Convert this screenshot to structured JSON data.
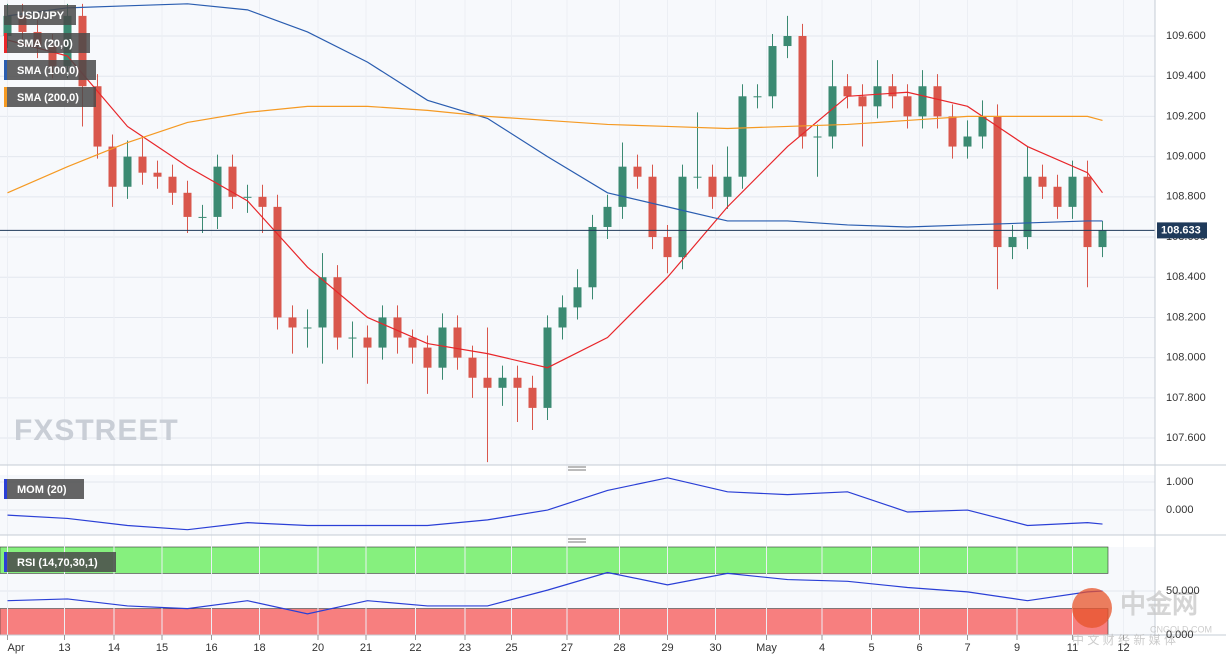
{
  "chart_data": [
    {
      "type": "candlestick",
      "xlim": [
        -0.5,
        76.5
      ],
      "ylim": [
        107.466,
        109.779
      ],
      "grid": true,
      "yticks": [
        {
          "value": 107.6,
          "label": "107.600"
        },
        {
          "value": 107.8,
          "label": "107.800"
        },
        {
          "value": 108.0,
          "label": "108.000"
        },
        {
          "value": 108.2,
          "label": "108.200"
        },
        {
          "value": 108.4,
          "label": "108.400"
        },
        {
          "value": 108.6,
          "label": "108.600"
        },
        {
          "value": 108.8,
          "label": "108.800"
        },
        {
          "value": 109.0,
          "label": "109.000"
        },
        {
          "value": 109.2,
          "label": "109.200"
        },
        {
          "value": 109.4,
          "label": "109.400"
        },
        {
          "value": 109.6,
          "label": "109.600"
        }
      ],
      "current_price": 108.633,
      "watermark": "FXSTREET",
      "series": [
        {
          "name": "USD/JPY",
          "up_color": "#3b8a72",
          "down_color": "#d9574c",
          "open": [
            109.6,
            109.7,
            109.62,
            109.55,
            109.45,
            109.7,
            109.35,
            109.05,
            108.85,
            109.0,
            108.92,
            108.9,
            108.82,
            108.7,
            108.7,
            108.95,
            108.8,
            108.8,
            108.75,
            108.2,
            108.15,
            108.15,
            108.4,
            108.1,
            108.1,
            108.05,
            108.2,
            108.1,
            108.05,
            107.95,
            108.15,
            108.0,
            107.9,
            107.85,
            107.9,
            107.85,
            107.75,
            108.15,
            108.25,
            108.35,
            108.65,
            108.75,
            108.95,
            108.9,
            108.6,
            108.5,
            108.9,
            108.9,
            108.8,
            108.9,
            109.3,
            109.3,
            109.55,
            109.6,
            109.1,
            109.1,
            109.35,
            109.3,
            109.25,
            109.35,
            109.3,
            109.2,
            109.35,
            109.2,
            109.05,
            109.1,
            109.2,
            108.55,
            108.6,
            108.9,
            108.85,
            108.75,
            108.9,
            108.55
          ],
          "high": [
            109.76,
            109.76,
            109.68,
            109.61,
            109.76,
            109.76,
            109.41,
            109.11,
            109.08,
            109.1,
            108.98,
            108.96,
            108.88,
            108.76,
            109.01,
            109.01,
            108.86,
            108.86,
            108.81,
            108.26,
            108.24,
            108.52,
            108.46,
            108.18,
            108.16,
            108.26,
            108.26,
            108.14,
            108.11,
            108.22,
            108.21,
            108.06,
            108.15,
            107.96,
            107.96,
            107.91,
            108.21,
            108.31,
            108.44,
            108.71,
            108.81,
            109.07,
            109.01,
            108.96,
            108.66,
            108.96,
            109.22,
            108.96,
            109.05,
            109.36,
            109.36,
            109.61,
            109.7,
            109.66,
            109.16,
            109.48,
            109.41,
            109.36,
            109.48,
            109.41,
            109.36,
            109.43,
            109.41,
            109.26,
            109.18,
            109.28,
            109.26,
            108.66,
            109.05,
            108.96,
            108.91,
            108.98,
            108.98,
            108.68
          ],
          "low": [
            109.54,
            109.56,
            109.49,
            109.39,
            109.39,
            109.15,
            108.99,
            108.75,
            108.79,
            108.86,
            108.84,
            108.76,
            108.62,
            108.62,
            108.64,
            108.74,
            108.72,
            108.62,
            108.14,
            108.02,
            108.05,
            107.97,
            108.04,
            108.0,
            107.87,
            107.99,
            108.02,
            107.97,
            107.82,
            107.89,
            107.94,
            107.8,
            107.48,
            107.76,
            107.68,
            107.64,
            107.69,
            108.09,
            108.19,
            108.29,
            108.59,
            108.69,
            108.84,
            108.54,
            108.42,
            108.44,
            108.84,
            108.74,
            108.74,
            108.84,
            109.24,
            109.24,
            109.49,
            109.04,
            108.9,
            109.04,
            109.24,
            109.05,
            109.19,
            109.24,
            109.14,
            109.14,
            109.14,
            108.99,
            108.99,
            109.04,
            108.34,
            108.49,
            108.54,
            108.79,
            108.69,
            108.69,
            108.35,
            108.5
          ],
          "close": [
            109.7,
            109.62,
            109.55,
            109.45,
            109.7,
            109.35,
            109.05,
            108.85,
            109.0,
            108.92,
            108.9,
            108.82,
            108.7,
            108.7,
            108.95,
            108.8,
            108.8,
            108.75,
            108.2,
            108.15,
            108.15,
            108.4,
            108.1,
            108.1,
            108.05,
            108.2,
            108.1,
            108.05,
            107.95,
            108.15,
            108.0,
            107.9,
            107.85,
            107.9,
            107.85,
            107.75,
            108.15,
            108.25,
            108.35,
            108.65,
            108.75,
            108.95,
            108.9,
            108.6,
            108.5,
            108.9,
            108.9,
            108.8,
            108.9,
            109.3,
            109.3,
            109.55,
            109.6,
            109.1,
            109.1,
            109.35,
            109.3,
            109.25,
            109.35,
            109.3,
            109.2,
            109.35,
            109.2,
            109.05,
            109.1,
            109.2,
            108.55,
            108.6,
            108.9,
            108.85,
            108.75,
            108.9,
            108.55,
            108.633
          ]
        },
        {
          "name": "SMA (20,0)",
          "color": "#e8262a",
          "x": [
            0,
            4,
            8,
            12,
            16,
            20,
            24,
            28,
            32,
            36,
            40,
            44,
            48,
            52,
            56,
            60,
            64,
            68,
            72,
            73
          ],
          "values": [
            109.58,
            109.5,
            109.15,
            108.95,
            108.78,
            108.45,
            108.2,
            108.07,
            108.02,
            107.95,
            108.1,
            108.4,
            108.75,
            109.05,
            109.3,
            109.32,
            109.25,
            109.05,
            108.92,
            108.82
          ]
        },
        {
          "name": "SMA (100,0)",
          "color": "#2a5db0",
          "x": [
            0,
            4,
            8,
            12,
            16,
            20,
            24,
            28,
            32,
            36,
            40,
            44,
            48,
            52,
            56,
            60,
            64,
            68,
            72,
            73
          ],
          "values": [
            109.7,
            109.74,
            109.75,
            109.76,
            109.73,
            109.62,
            109.47,
            109.28,
            109.19,
            109.0,
            108.82,
            108.75,
            108.68,
            108.68,
            108.66,
            108.65,
            108.66,
            108.67,
            108.68,
            108.68
          ]
        },
        {
          "name": "SMA (200,0)",
          "color": "#f59a23",
          "x": [
            0,
            4,
            8,
            12,
            16,
            20,
            24,
            28,
            32,
            36,
            40,
            44,
            48,
            52,
            56,
            60,
            64,
            68,
            72,
            73
          ],
          "values": [
            108.82,
            108.95,
            109.07,
            109.17,
            109.22,
            109.25,
            109.25,
            109.23,
            109.2,
            109.18,
            109.16,
            109.15,
            109.14,
            109.15,
            109.16,
            109.18,
            109.2,
            109.2,
            109.2,
            109.18
          ]
        }
      ]
    },
    {
      "type": "line",
      "xlim": [
        -0.5,
        76.5
      ],
      "ylim": [
        -0.89,
        1.25
      ],
      "yticks": [
        {
          "value": 1,
          "label": "1.000"
        },
        {
          "value": 0,
          "label": "0.000"
        }
      ],
      "series": [
        {
          "name": "MOM (20)",
          "color": "#2a3fd6",
          "x": [
            0,
            4,
            8,
            12,
            16,
            20,
            24,
            28,
            32,
            36,
            40,
            44,
            48,
            52,
            56,
            60,
            64,
            68,
            72,
            73
          ],
          "values": [
            -0.18,
            -0.3,
            -0.55,
            -0.7,
            -0.45,
            -0.55,
            -0.55,
            -0.55,
            -0.35,
            0,
            0.7,
            1.15,
            0.65,
            0.55,
            0.65,
            -0.07,
            0,
            -0.55,
            -0.45,
            -0.5
          ]
        }
      ]
    },
    {
      "type": "line",
      "xlim": [
        -0.5,
        76.5
      ],
      "ylim": [
        0,
        100
      ],
      "overbought": 70,
      "oversold": 30,
      "yticks": [
        {
          "value": 50,
          "label": "50.000"
        },
        {
          "value": 0,
          "label": "0.000"
        }
      ],
      "xticks": [
        {
          "value": 0,
          "label": "Apr"
        },
        {
          "value": 3.8,
          "label": "13"
        },
        {
          "value": 7.1,
          "label": "14"
        },
        {
          "value": 10.3,
          "label": "15"
        },
        {
          "value": 13.6,
          "label": "16"
        },
        {
          "value": 16.8,
          "label": "18"
        },
        {
          "value": 20.7,
          "label": "20"
        },
        {
          "value": 23.9,
          "label": "21"
        },
        {
          "value": 27.2,
          "label": "22"
        },
        {
          "value": 30.5,
          "label": "23"
        },
        {
          "value": 33.6,
          "label": "25"
        },
        {
          "value": 37.3,
          "label": "27"
        },
        {
          "value": 40.8,
          "label": "28"
        },
        {
          "value": 44,
          "label": "29"
        },
        {
          "value": 47.2,
          "label": "30"
        },
        {
          "value": 50.6,
          "label": "May"
        },
        {
          "value": 54.3,
          "label": "4"
        },
        {
          "value": 57.6,
          "label": "5"
        },
        {
          "value": 60.8,
          "label": "6"
        },
        {
          "value": 64,
          "label": "7"
        },
        {
          "value": 67.3,
          "label": "9"
        },
        {
          "value": 71,
          "label": "11"
        },
        {
          "value": 74.4,
          "label": "12"
        }
      ],
      "series": [
        {
          "name": "RSI (14,70,30,1)",
          "color": "#2a3fd6",
          "x": [
            0,
            4,
            8,
            12,
            16,
            20,
            24,
            28,
            32,
            36,
            40,
            44,
            48,
            52,
            56,
            60,
            64,
            68,
            72,
            73
          ],
          "values": [
            39,
            41,
            33,
            30,
            39,
            24,
            39,
            33,
            33,
            51,
            71,
            57,
            70,
            63,
            61,
            54,
            49,
            39,
            49,
            50
          ]
        }
      ]
    }
  ],
  "watermark": {
    "brand": "中金网",
    "site": "CNGOLD.COM",
    "slogan": "中 文 财 经 新 媒 体"
  }
}
